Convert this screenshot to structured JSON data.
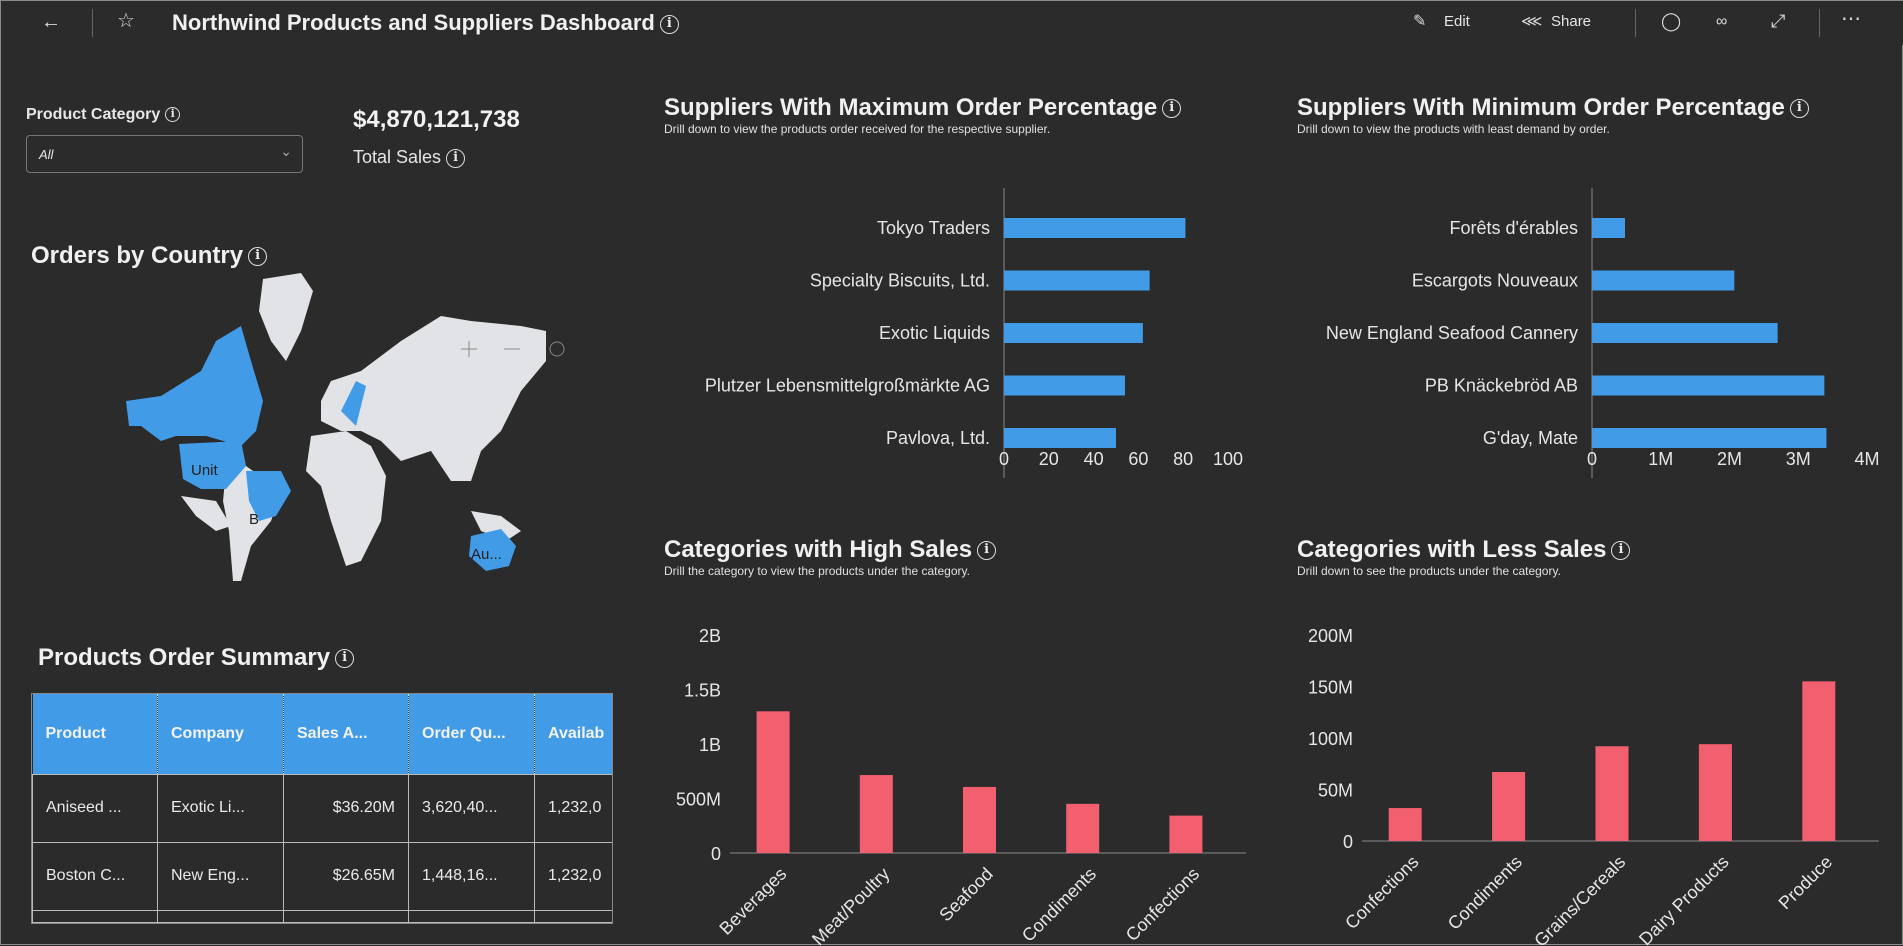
{
  "header": {
    "title": "Northwind Products and Suppliers Dashboard",
    "edit_label": "Edit",
    "share_label": "Share",
    "icons": [
      "back-arrow-icon",
      "star-icon",
      "info-icon",
      "pencil-icon",
      "share-icon",
      "comment-icon",
      "glasses-icon",
      "expand-icon",
      "more-icon"
    ]
  },
  "filter": {
    "label": "Product Category",
    "value": "All"
  },
  "kpi": {
    "value": "$4,870,121,738",
    "label": "Total Sales"
  },
  "map": {
    "title": "Orders by Country",
    "labels": [
      "Unit",
      "B",
      "Au..."
    ],
    "highlight_color": "#429be6",
    "land_color": "#e1e3e6"
  },
  "table": {
    "title": "Products Order Summary",
    "columns": [
      "Product",
      "Company",
      "Sales A...",
      "Order Qu...",
      "Availab"
    ],
    "rows": [
      [
        "Aniseed ...",
        "Exotic Li...",
        "$36.20M",
        "3,620,40...",
        "1,232,0"
      ],
      [
        "Boston C...",
        "New Eng...",
        "$26.65M",
        "1,448,16...",
        "1,232,0"
      ]
    ],
    "header_color": "#429be6"
  },
  "chart_data": [
    {
      "type": "bar",
      "orientation": "horizontal",
      "title": "Suppliers With Maximum Order Percentage",
      "subtitle": "Drill down to view the products order received for the respective supplier.",
      "categories": [
        "Tokyo Traders",
        "Specialty Biscuits, Ltd.",
        "Exotic Liquids",
        "Plutzer Lebensmittelgroßmärkte AG",
        "Pavlova, Ltd."
      ],
      "values": [
        81,
        65,
        62,
        54,
        50
      ],
      "xlim": [
        0,
        100
      ],
      "ticks": [
        "0",
        "20",
        "40",
        "60",
        "80",
        "100"
      ],
      "color": "#429be6"
    },
    {
      "type": "bar",
      "orientation": "horizontal",
      "title": "Suppliers With Minimum Order Percentage",
      "subtitle": "Drill down to view the products with least demand by order.",
      "categories": [
        "Forêts d'érables",
        "Escargots Nouveaux",
        "New England Seafood Cannery",
        "PB Knäckebröd AB",
        "G'day, Mate"
      ],
      "values": [
        480000,
        2070000,
        2700000,
        3380000,
        3410000
      ],
      "xlim": [
        0,
        4000000
      ],
      "ticks": [
        "0",
        "1M",
        "2M",
        "3M",
        "4M"
      ],
      "color": "#429be6"
    },
    {
      "type": "bar",
      "title": "Categories with High Sales",
      "subtitle": "Drill the category to view the products under the category.",
      "categories": [
        "Beverages",
        "Meat/Poultry",
        "Seafood",
        "Condiments",
        "Confections"
      ],
      "values": [
        1300000000,
        715000000,
        606000000,
        451000000,
        343000000
      ],
      "ylim": [
        0,
        2000000000
      ],
      "ticks": [
        "0",
        "500M",
        "1B",
        "1.5B",
        "2B"
      ],
      "color": "#f25f6f"
    },
    {
      "type": "bar",
      "title": "Categories with Less Sales",
      "subtitle": "Drill down to see the products under the category.",
      "categories": [
        "Confections",
        "Condiments",
        "Grains/Cereals",
        "Dairy Products",
        "Produce"
      ],
      "values": [
        32000000,
        67000000,
        92000000,
        94000000,
        155000000
      ],
      "ylim": [
        0,
        200000000
      ],
      "ticks": [
        "0",
        "50M",
        "100M",
        "150M",
        "200M"
      ],
      "color": "#f25f6f"
    }
  ]
}
